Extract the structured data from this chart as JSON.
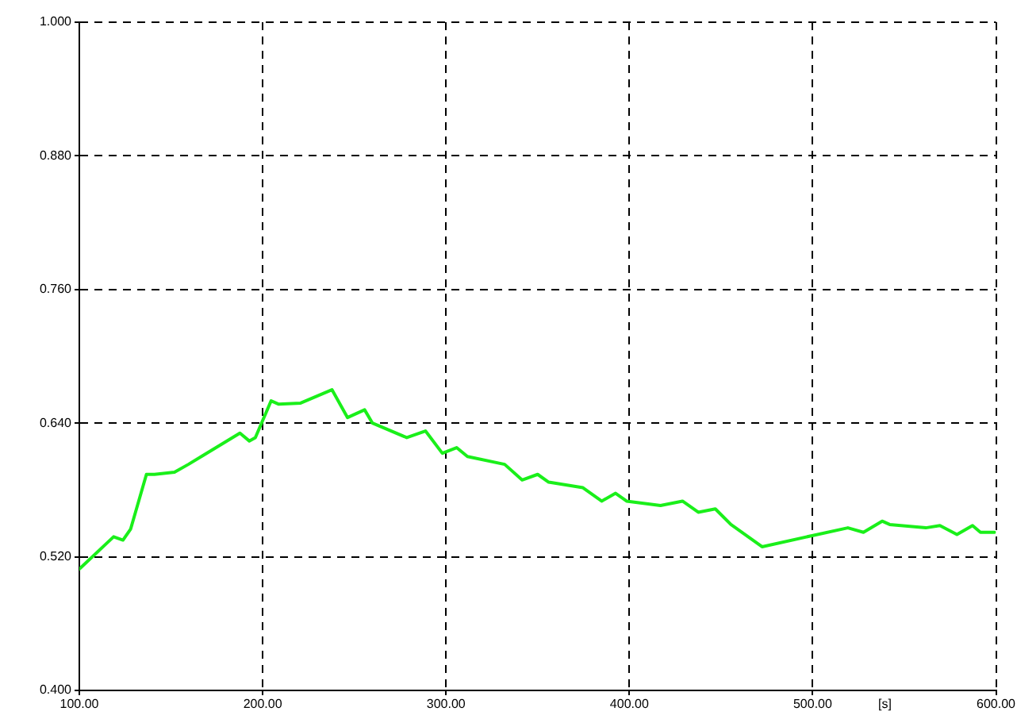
{
  "chart_data": {
    "type": "line",
    "xlabel": "[s]",
    "x": [
      100,
      118.7,
      123.8,
      128,
      136.6,
      141,
      151.9,
      159.5,
      187.6,
      192.7,
      196,
      204.6,
      208.8,
      220.7,
      237.8,
      246.3,
      255.6,
      259.9,
      278.6,
      288.8,
      298,
      305.8,
      311.7,
      332,
      341.5,
      350,
      356,
      374.7,
      384.9,
      392.5,
      398.5,
      417,
      429,
      437.6,
      446.9,
      455.4,
      472.4,
      499.7,
      519.2,
      527.7,
      537.9,
      542,
      561.7,
      569.4,
      578.7,
      587.2,
      591.5,
      599.2
    ],
    "series": [
      {
        "color": "#1aef1a",
        "values": [
          0.509,
          0.538,
          0.535,
          0.545,
          0.594,
          0.594,
          0.596,
          0.603,
          0.631,
          0.624,
          0.627,
          0.66,
          0.657,
          0.658,
          0.67,
          0.645,
          0.652,
          0.64,
          0.627,
          0.633,
          0.613,
          0.618,
          0.61,
          0.603,
          0.589,
          0.594,
          0.587,
          0.582,
          0.57,
          0.577,
          0.57,
          0.566,
          0.57,
          0.56,
          0.563,
          0.549,
          0.529,
          0.539,
          0.546,
          0.542,
          0.552,
          0.549,
          0.546,
          0.548,
          0.54,
          0.548,
          0.542,
          0.542
        ]
      }
    ],
    "xlim": [
      100,
      600
    ],
    "ylim": [
      0.4,
      1.0
    ],
    "xticks": [
      {
        "value": 100,
        "label": "100.00"
      },
      {
        "value": 200,
        "label": "200.00"
      },
      {
        "value": 300,
        "label": "300.00"
      },
      {
        "value": 400,
        "label": "400.00"
      },
      {
        "value": 500,
        "label": "500.00"
      },
      {
        "value": 600,
        "label": "600.00"
      }
    ],
    "yticks": [
      {
        "value": 0.4,
        "label": "0.400"
      },
      {
        "value": 0.52,
        "label": "0.520"
      },
      {
        "value": 0.64,
        "label": "0.640"
      },
      {
        "value": 0.76,
        "label": "0.760"
      },
      {
        "value": 0.88,
        "label": "0.880"
      },
      {
        "value": 1.0,
        "label": "1.000"
      }
    ],
    "grid": true,
    "legend": false,
    "marker": "none",
    "line_style": "solid"
  }
}
